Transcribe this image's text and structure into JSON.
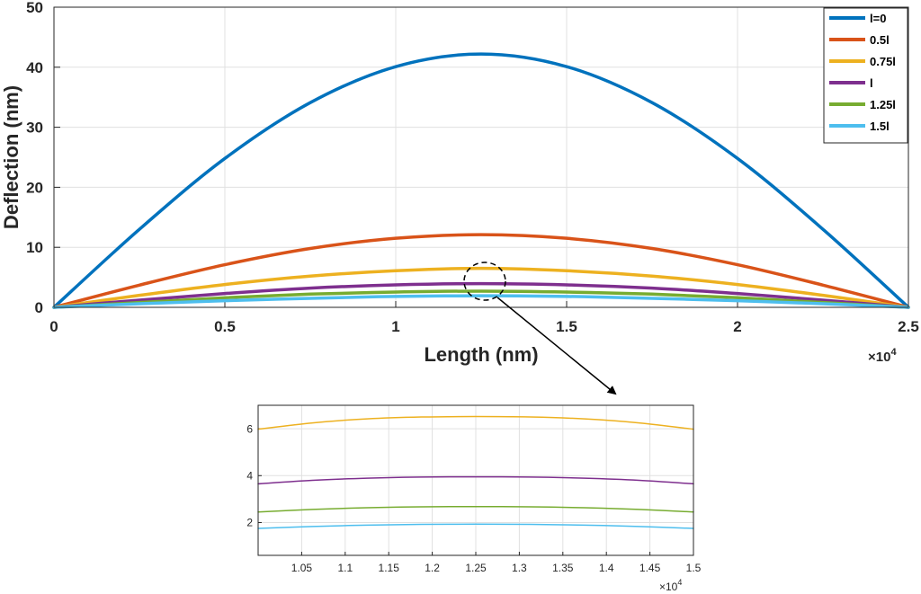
{
  "chart_data": [
    {
      "type": "line",
      "title": "",
      "xlabel": "Length (nm)",
      "ylabel": "Deflection (nm)",
      "x_exponent_label": "×10",
      "x_exponent_power": "4",
      "xlim": [
        0,
        25000
      ],
      "ylim": [
        0,
        50
      ],
      "xticks": [
        0,
        5000,
        10000,
        15000,
        20000,
        25000
      ],
      "xtick_labels": [
        "0",
        "0.5",
        "1",
        "1.5",
        "2",
        "2.5"
      ],
      "yticks": [
        0,
        10,
        20,
        30,
        40,
        50
      ],
      "ytick_labels": [
        "0",
        "10",
        "20",
        "30",
        "40",
        "50"
      ],
      "grid": true,
      "legend_position": "top-right",
      "x": [
        0,
        2500,
        5000,
        7500,
        10000,
        12500,
        15000,
        17500,
        20000,
        22500,
        25000
      ],
      "series": [
        {
          "name": "l=0",
          "color": "#0072BD",
          "values": [
            0,
            13.0,
            24.8,
            34.1,
            40.1,
            42.2,
            40.1,
            34.1,
            24.8,
            13.0,
            0
          ]
        },
        {
          "name": "0.5l",
          "color": "#D95319",
          "values": [
            0,
            3.7,
            7.1,
            9.8,
            11.5,
            12.1,
            11.5,
            9.8,
            7.1,
            3.7,
            0
          ]
        },
        {
          "name": "0.75l",
          "color": "#EDB120",
          "values": [
            0,
            2.0,
            3.8,
            5.2,
            6.1,
            6.5,
            6.1,
            5.2,
            3.8,
            2.0,
            0
          ]
        },
        {
          "name": "l",
          "color": "#7E2F8E",
          "values": [
            0,
            1.2,
            2.3,
            3.2,
            3.75,
            3.95,
            3.75,
            3.2,
            2.3,
            1.2,
            0
          ]
        },
        {
          "name": "1.25l",
          "color": "#77AC30",
          "values": [
            0,
            0.8,
            1.6,
            2.2,
            2.55,
            2.7,
            2.55,
            2.2,
            1.6,
            0.8,
            0
          ]
        },
        {
          "name": "1.5l",
          "color": "#4DBEEE",
          "values": [
            0,
            0.6,
            1.1,
            1.5,
            1.82,
            1.92,
            1.82,
            1.5,
            1.1,
            0.6,
            0
          ]
        }
      ]
    },
    {
      "type": "line",
      "title": "",
      "xlabel": "",
      "ylabel": "",
      "x_exponent_label": "×10",
      "x_exponent_power": "4",
      "xlim": [
        10000,
        15000
      ],
      "ylim": [
        0.6,
        7.0
      ],
      "xticks": [
        10500,
        11000,
        11500,
        12000,
        12500,
        13000,
        13500,
        14000,
        14500,
        15000
      ],
      "xtick_labels": [
        "1.05",
        "1.1",
        "1.15",
        "1.2",
        "1.25",
        "1.3",
        "1.35",
        "1.4",
        "1.45",
        "1.5"
      ],
      "yticks": [
        2,
        4,
        6
      ],
      "ytick_labels": [
        "2",
        "4",
        "6"
      ],
      "grid": true,
      "x": [
        10000,
        10625,
        11250,
        11875,
        12500,
        13125,
        13750,
        14375,
        15000
      ],
      "series": [
        {
          "color": "#EDB120",
          "values": [
            5.98,
            6.25,
            6.42,
            6.5,
            6.52,
            6.5,
            6.42,
            6.25,
            5.98
          ]
        },
        {
          "color": "#7E2F8E",
          "values": [
            3.65,
            3.8,
            3.89,
            3.94,
            3.95,
            3.94,
            3.89,
            3.8,
            3.65
          ]
        },
        {
          "color": "#77AC30",
          "values": [
            2.45,
            2.56,
            2.63,
            2.67,
            2.68,
            2.67,
            2.63,
            2.56,
            2.45
          ]
        },
        {
          "color": "#4DBEEE",
          "values": [
            1.75,
            1.83,
            1.89,
            1.92,
            1.93,
            1.92,
            1.89,
            1.83,
            1.75
          ]
        }
      ]
    }
  ]
}
